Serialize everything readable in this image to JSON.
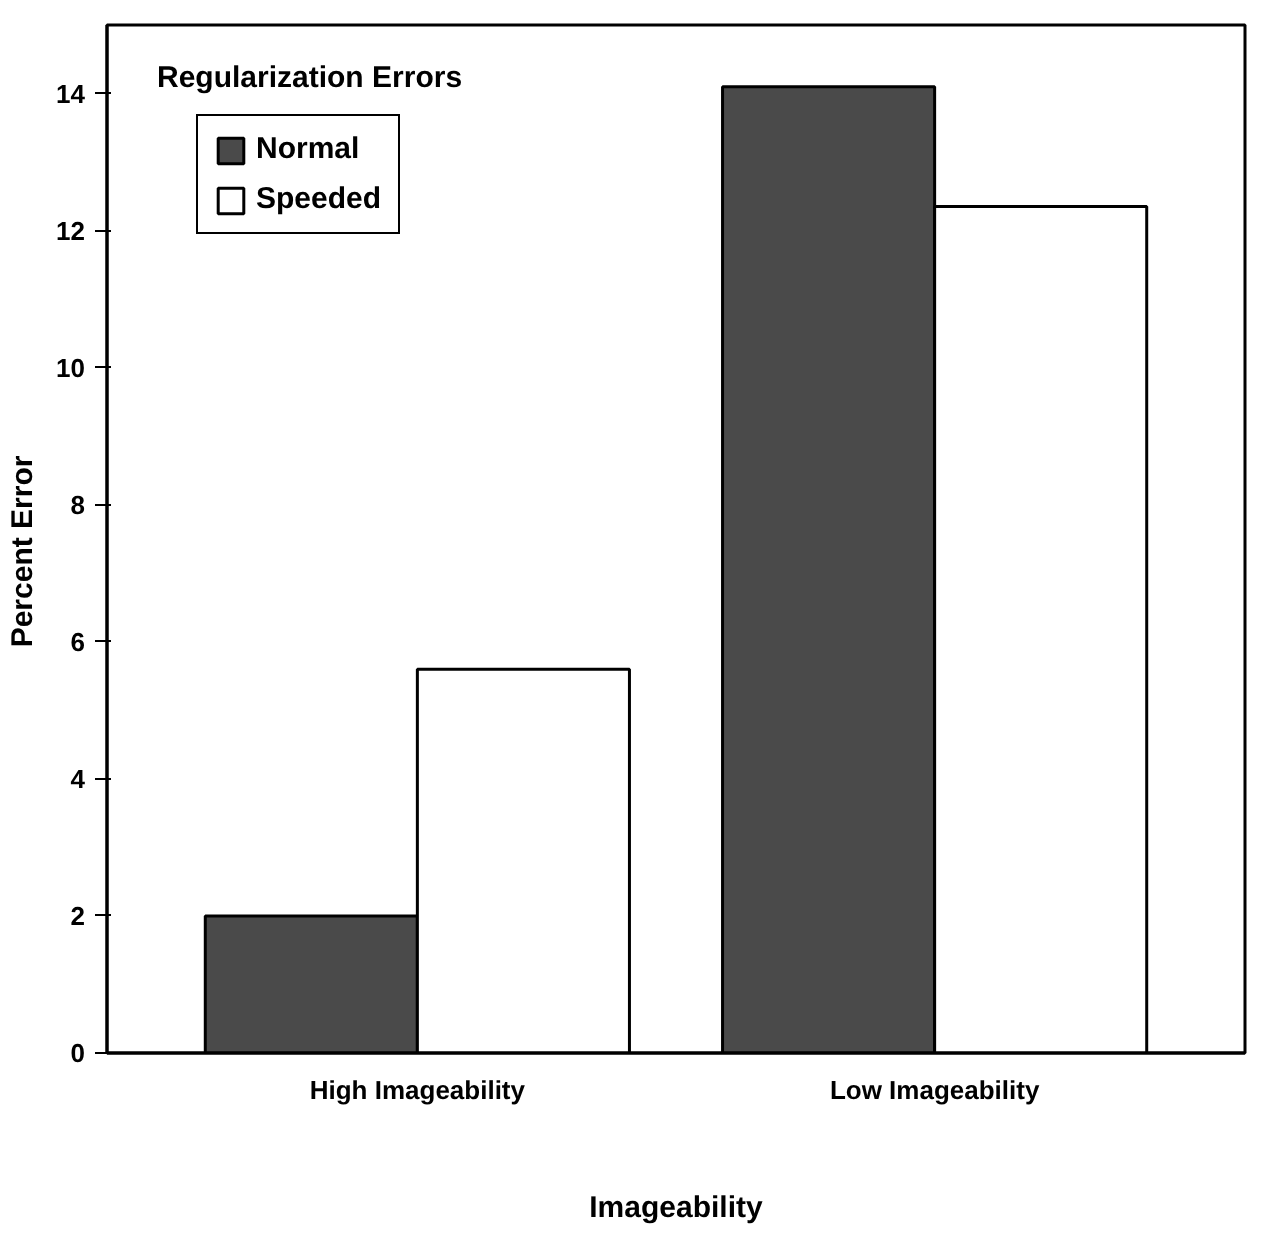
{
  "chart_data": {
    "type": "bar",
    "title": "Regularization    Errors",
    "xlabel": "Imageability",
    "ylabel": "Percent    Error",
    "categories": [
      "High Imageability",
      "Low Imageability"
    ],
    "series": [
      {
        "name": "Normal",
        "color": "#4a4a4a",
        "values": [
          2.0,
          14.1
        ]
      },
      {
        "name": "Speeded",
        "color": "#ffffff",
        "values": [
          5.6,
          12.35
        ]
      }
    ],
    "ylim": [
      0,
      15
    ],
    "yticks": [
      0,
      2,
      4,
      6,
      8,
      10,
      12,
      14
    ],
    "grid": false,
    "legend": "top left"
  }
}
